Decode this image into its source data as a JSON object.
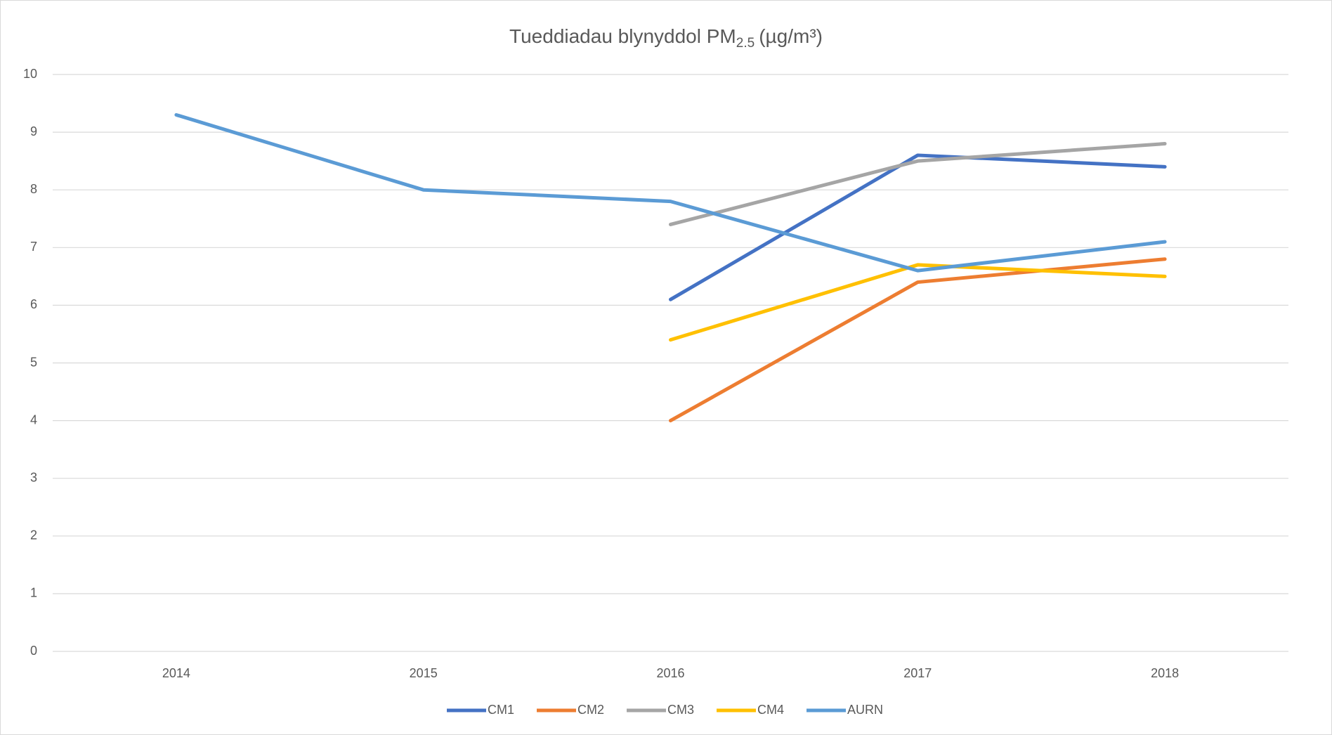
{
  "chart_data": {
    "type": "line",
    "title": [
      "Tueddiadau blynyddol PM",
      "2.5",
      "(µg/m³)"
    ],
    "categories": [
      "2014",
      "2015",
      "2016",
      "2017",
      "2018"
    ],
    "series": [
      {
        "name": "CM1",
        "color": "#4472c4",
        "values": [
          null,
          null,
          6.1,
          8.6,
          8.4
        ]
      },
      {
        "name": "CM2",
        "color": "#ed7d31",
        "values": [
          null,
          null,
          4.0,
          6.4,
          6.8
        ]
      },
      {
        "name": "CM3",
        "color": "#a5a5a5",
        "values": [
          null,
          null,
          7.4,
          8.5,
          8.8
        ]
      },
      {
        "name": "CM4",
        "color": "#ffc000",
        "values": [
          null,
          null,
          5.4,
          6.7,
          6.5
        ]
      },
      {
        "name": "AURN",
        "color": "#5b9bd5",
        "values": [
          9.3,
          8.0,
          7.8,
          6.6,
          7.1
        ]
      }
    ],
    "ylim": [
      0,
      10
    ],
    "yticks": [
      0,
      1,
      2,
      3,
      4,
      5,
      6,
      7,
      8,
      9,
      10
    ],
    "grid": true,
    "legend": "bottom"
  }
}
